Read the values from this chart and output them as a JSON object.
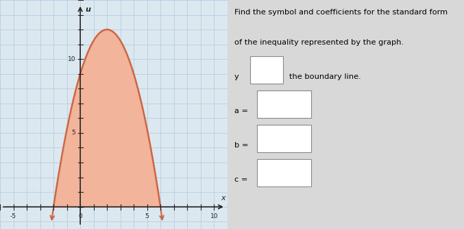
{
  "xlim": [
    -6,
    11
  ],
  "ylim": [
    -1.5,
    14
  ],
  "xtick_labels": [
    "-5",
    "0",
    "5",
    "10"
  ],
  "xtick_vals": [
    -5,
    0,
    5,
    10
  ],
  "ytick_labels": [
    "5",
    "10"
  ],
  "ytick_vals": [
    5,
    10
  ],
  "xlabel": "x",
  "ylabel": "u",
  "parabola_a": -0.75,
  "parabola_b": 3.0,
  "parabola_c": 9.0,
  "fill_color": "#f2b49a",
  "line_color": "#cc6644",
  "line_width": 1.8,
  "grid_color": "#afc8dc",
  "axis_color": "#222222",
  "panel_bg": "#dce8f0",
  "fig_bg": "#d8d8d8",
  "right_bg": "#d8d8d8",
  "text_title_line1": "Find the symbol and coefficients for the standard form",
  "text_title_line2": "of the inequality represented by the graph.",
  "text_y_label": "y",
  "text_boundary": "the boundary line.",
  "label_a": "a =",
  "label_b": "b =",
  "label_c": "c ="
}
